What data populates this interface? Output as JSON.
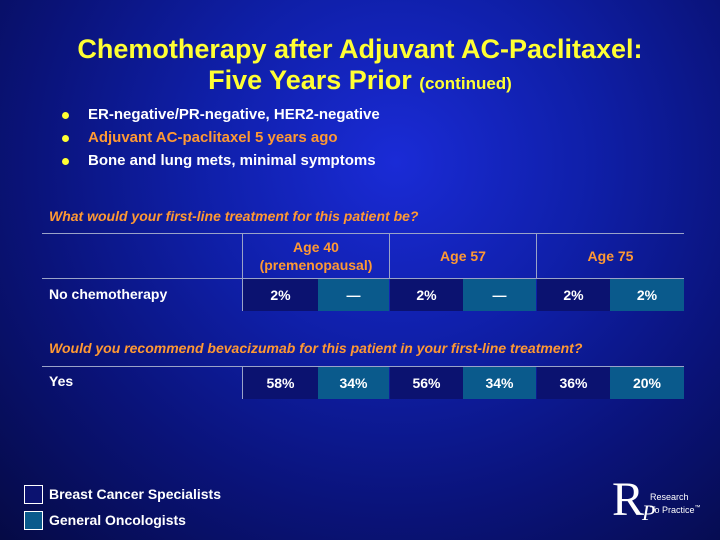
{
  "title": {
    "line1": "Chemotherapy after Adjuvant AC-Paclitaxel:",
    "line2": "Five Years Prior",
    "continued": "(continued)"
  },
  "bullets": [
    {
      "text": "ER-negative/PR-negative, HER2-negative",
      "color": "#ffffff"
    },
    {
      "text": "Adjuvant AC-paclitaxel 5 years ago",
      "color": "#ff9933"
    },
    {
      "text": "Bone and lung mets, minimal symptoms",
      "color": "#ffffff"
    }
  ],
  "question1": "What would your first-line treatment for this patient be?",
  "question2": "Would you recommend bevacizumab for this patient in your first-line treatment?",
  "headers": {
    "age40_line1": "Age 40",
    "age40_line2": "(premenopausal)",
    "age57": "Age 57",
    "age75": "Age 75"
  },
  "rows": {
    "no_chemo": {
      "label": "No chemotherapy",
      "values": [
        "2%",
        "—",
        "2%",
        "—",
        "2%",
        "2%"
      ]
    },
    "yes": {
      "label": "Yes",
      "values": [
        "58%",
        "34%",
        "56%",
        "34%",
        "36%",
        "20%"
      ]
    }
  },
  "legend": {
    "breast": "Breast Cancer Specialists",
    "general": "General Oncologists"
  },
  "logo": {
    "letter_r": "R",
    "letter_p": "P",
    "line1": "Research",
    "line2": "To Practice",
    "tm": "™"
  },
  "colors": {
    "title": "#ffff33",
    "accent_orange": "#ff9933",
    "breast_specialists": "#0b1270",
    "general_oncologists": "#0a5a8c"
  }
}
